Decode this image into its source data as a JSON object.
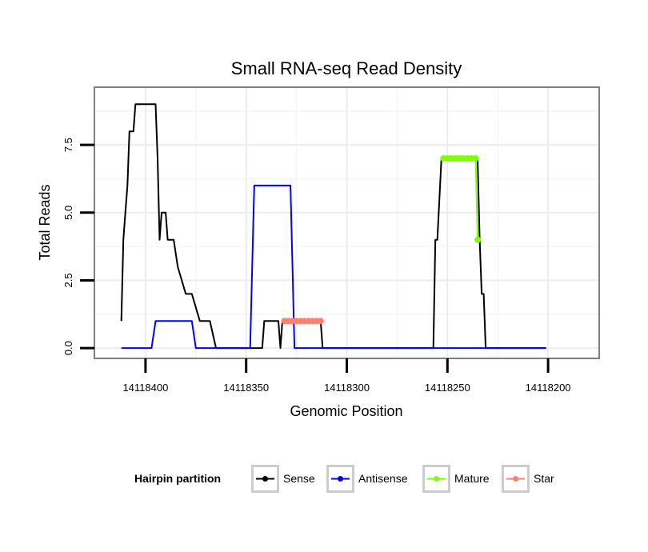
{
  "chart_data": {
    "type": "line",
    "title": "Small RNA-seq Read Density",
    "xlabel": "Genomic Position",
    "ylabel": "Total Reads",
    "x_reversed": true,
    "xlim": [
      14118175,
      14118425
    ],
    "ylim": [
      -0.35,
      9.6
    ],
    "x_ticks": [
      14118400,
      14118350,
      14118300,
      14118250,
      14118200
    ],
    "x_tick_labels": [
      "14118400",
      "14118350",
      "14118300",
      "14118250",
      "14118200"
    ],
    "y_ticks": [
      0,
      2.5,
      5,
      7.5
    ],
    "y_tick_labels": [
      "0.0",
      "2.5",
      "5.0",
      "7.5"
    ],
    "grid": true,
    "legend": {
      "title": "Hairpin partition",
      "position": "bottom",
      "entries": [
        {
          "label": "Sense",
          "color": "#000000"
        },
        {
          "label": "Antisense",
          "color": "#0000FF"
        },
        {
          "label": "Mature",
          "color": "#7FFF00"
        },
        {
          "label": "Star",
          "color": "#FA8072"
        }
      ]
    },
    "series": [
      {
        "name": "Sense",
        "color": "#000000",
        "x": [
          14118412,
          14118411,
          14118410,
          14118409,
          14118408,
          14118406,
          14118405,
          14118404,
          14118395,
          14118394,
          14118393,
          14118392,
          14118390,
          14118389,
          14118387,
          14118386,
          14118384,
          14118380,
          14118379,
          14118377,
          14118373,
          14118372,
          14118368,
          14118365,
          14118345,
          14118343,
          14118342,
          14118341,
          14118336,
          14118334,
          14118333,
          14118332,
          14118316,
          14118314,
          14118313,
          14118312,
          14118287,
          14118284,
          14118257,
          14118256,
          14118255,
          14118253,
          14118252,
          14118238,
          14118236,
          14118235,
          14118234,
          14118233,
          14118232,
          14118231,
          14118225,
          14118201
        ],
        "values": [
          1,
          4,
          5,
          6,
          8,
          8,
          9,
          9,
          9,
          7,
          4,
          5,
          5,
          4,
          4,
          4,
          3,
          2,
          2,
          2,
          1,
          1,
          1,
          0,
          0,
          0,
          0,
          1,
          1,
          1,
          0,
          1,
          1,
          1,
          1,
          0,
          0,
          0,
          0,
          4,
          4,
          7,
          7,
          7,
          7,
          7,
          4,
          2,
          2,
          0,
          0,
          0
        ]
      },
      {
        "name": "Antisense",
        "color": "#0000FF",
        "x": [
          14118412,
          14118397,
          14118395,
          14118377,
          14118375,
          14118348,
          14118346,
          14118328,
          14118326,
          14118316,
          14118314,
          14118313,
          14118292,
          14118263,
          14118235,
          14118201
        ],
        "values": [
          0,
          0,
          1,
          1,
          0,
          0,
          6,
          6,
          0,
          0,
          0,
          0,
          0,
          0,
          0,
          0
        ]
      },
      {
        "name": "Mature",
        "color": "#7FFF00",
        "x": [
          14118252,
          14118250,
          14118248,
          14118246,
          14118244,
          14118242,
          14118240,
          14118238,
          14118236,
          14118235
        ],
        "values": [
          7,
          7,
          7,
          7,
          7,
          7,
          7,
          7,
          7,
          4
        ]
      },
      {
        "name": "Star",
        "color": "#FA8072",
        "x": [
          14118331,
          14118329,
          14118327,
          14118325,
          14118323,
          14118321,
          14118319,
          14118317,
          14118315,
          14118313
        ],
        "values": [
          1,
          1,
          1,
          1,
          1,
          1,
          1,
          1,
          1,
          1
        ]
      }
    ]
  }
}
